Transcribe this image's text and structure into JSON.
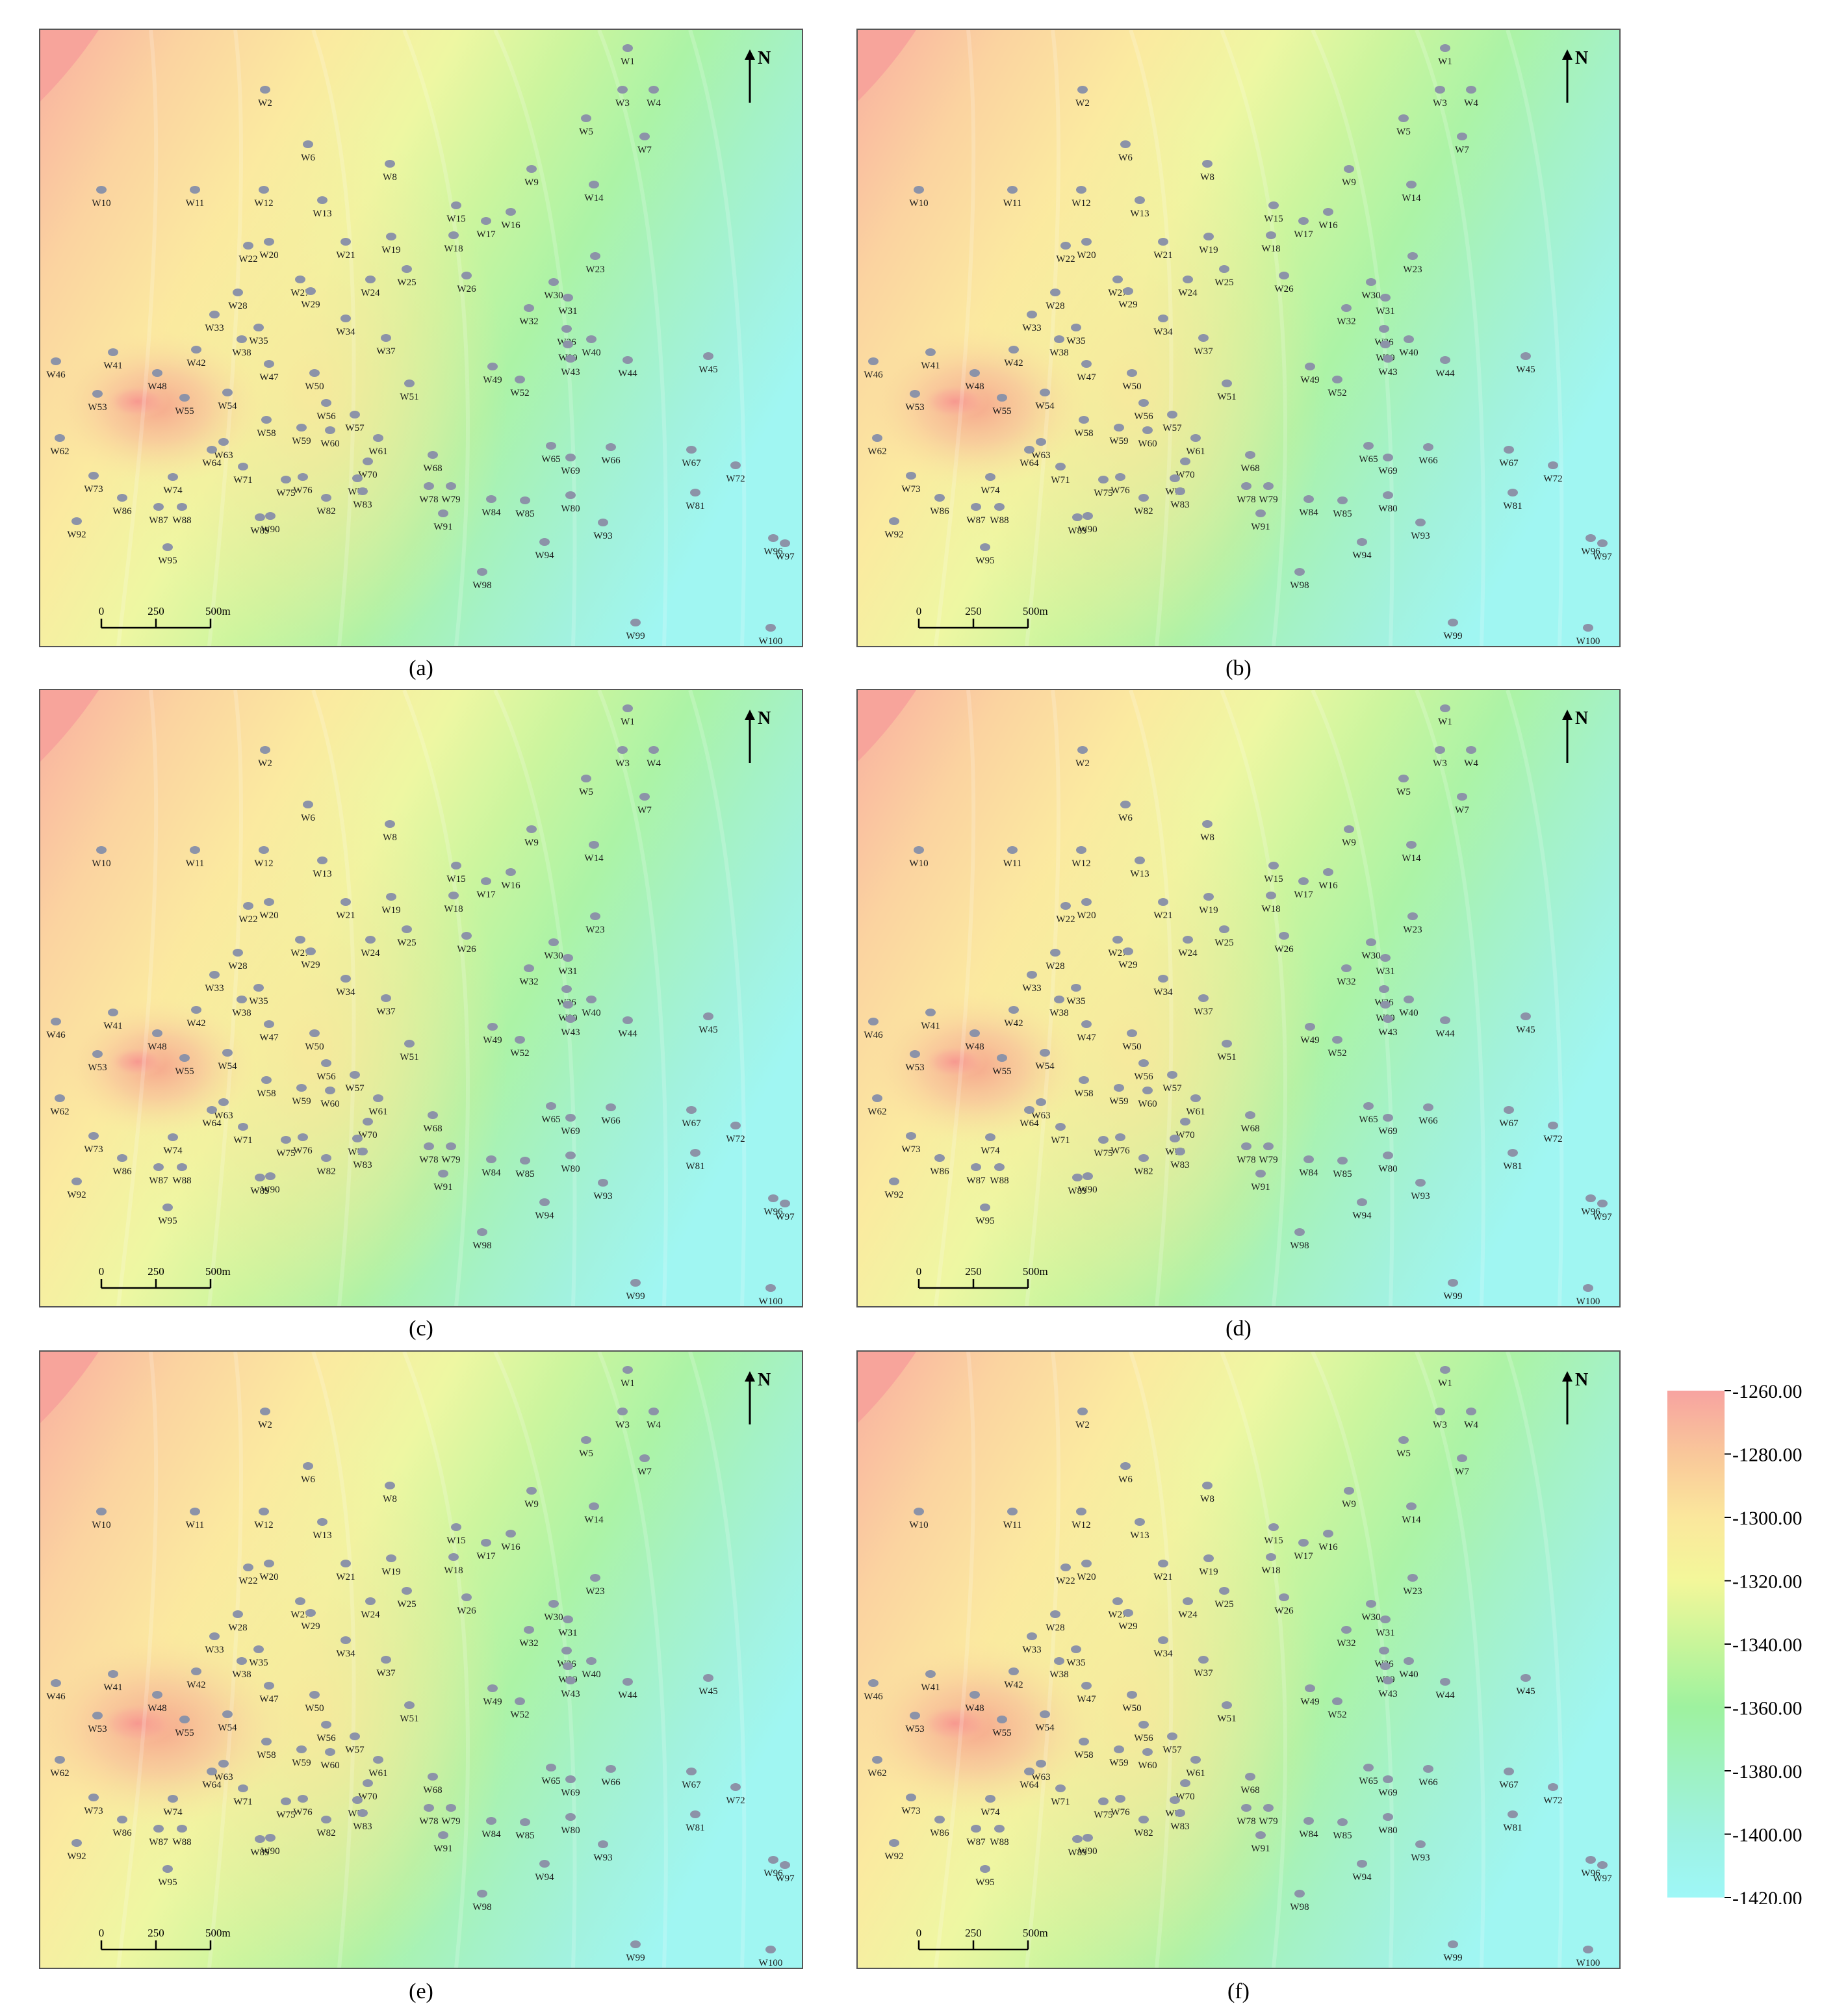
{
  "north_label": "N",
  "scale_bar": {
    "labels": [
      "0",
      "250",
      "500m"
    ]
  },
  "panels": [
    {
      "id": "a",
      "caption": "(a)",
      "hot_spot": 1.0
    },
    {
      "id": "b",
      "caption": "(b)",
      "hot_spot": 1.05
    },
    {
      "id": "c",
      "caption": "(c)",
      "hot_spot": 0.9
    },
    {
      "id": "d",
      "caption": "(d)",
      "hot_spot": 1.0
    },
    {
      "id": "e",
      "caption": "(e)",
      "hot_spot": 1.25
    },
    {
      "id": "f",
      "caption": "(f)",
      "hot_spot": 1.15
    }
  ],
  "wells": [
    "W1",
    "W2",
    "W3",
    "W4",
    "W5",
    "W6",
    "W7",
    "W8",
    "W9",
    "W10",
    "W11",
    "W12",
    "W13",
    "W14",
    "W15",
    "W16",
    "W17",
    "W18",
    "W19",
    "W20",
    "W21",
    "W22",
    "W23",
    "W24",
    "W25",
    "W26",
    "W27",
    "W28",
    "W29",
    "W30",
    "W31",
    "W32",
    "W33",
    "W34",
    "W35",
    "W36",
    "W37",
    "W38",
    "W39",
    "W40",
    "W41",
    "W42",
    "W43",
    "W44",
    "W45",
    "W46",
    "W47",
    "W48",
    "W49",
    "W50",
    "W51",
    "W52",
    "W53",
    "W54",
    "W55",
    "W56",
    "W57",
    "W58",
    "W59",
    "W60",
    "W61",
    "W62",
    "W63",
    "W64",
    "W65",
    "W66",
    "W67",
    "W68",
    "W69",
    "W70",
    "W71",
    "W72",
    "W73",
    "W74",
    "W75",
    "W76",
    "W77",
    "W78",
    "W79",
    "W80",
    "W81",
    "W82",
    "W83",
    "W84",
    "W85",
    "W86",
    "W87",
    "W88",
    "W89",
    "W90",
    "W91",
    "W92",
    "W93",
    "W94",
    "W95",
    "W96",
    "W97",
    "W98",
    "W99",
    "W100"
  ],
  "legend": {
    "labels": [
      "-1260.00",
      "-1280.00",
      "-1300.00",
      "-1320.00",
      "-1340.00",
      "-1360.00",
      "-1380.00",
      "-1400.00",
      "-1420.00"
    ],
    "colors": [
      "#f7a3a0",
      "#f9c79a",
      "#fbe79c",
      "#f3f79a",
      "#c8f59a",
      "#9ef29f",
      "#9ef2c2",
      "#9ef2e2",
      "#9ef7f7"
    ]
  },
  "colors": {
    "well_marker": "#8c93a8",
    "panel_border": "#555555"
  }
}
